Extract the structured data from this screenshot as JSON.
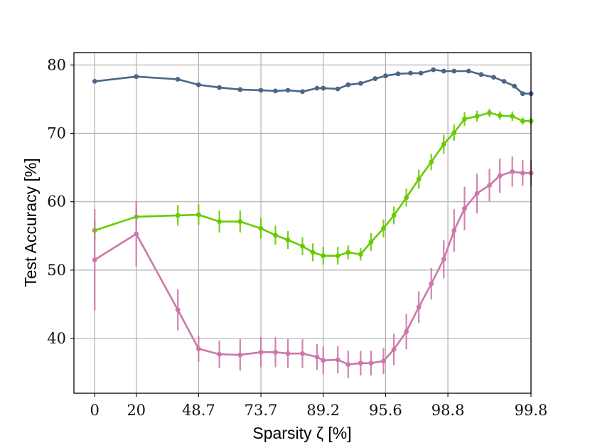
{
  "chart_data": {
    "type": "line",
    "xlabel": "Sparsity ζ [%]",
    "ylabel": "Test Accuracy [%]",
    "ylim": [
      32,
      81.8
    ],
    "yticks": [
      40,
      50,
      60,
      70,
      80
    ],
    "xtick_labels": [
      "0",
      "20",
      "48.7",
      "73.7",
      "89.2",
      "95.6",
      "98.8",
      "99.8"
    ],
    "xtick_index": [
      0,
      2,
      5,
      8,
      11,
      14,
      17,
      21
    ],
    "x_index_range": [
      -1.0,
      21.0
    ],
    "grid": true,
    "legend": "none",
    "x_index": [
      0,
      2,
      4,
      5,
      6,
      7,
      8,
      8.7,
      9.3,
      10,
      10.7,
      11,
      11.7,
      12.2,
      12.8,
      13.5,
      14,
      14.6,
      15.2,
      15.7,
      16.3,
      16.8,
      17.3,
      18,
      18.6,
      19.2,
      19.7,
      20.2,
      20.6,
      21
    ],
    "series": [
      {
        "color": "#4a6788",
        "x_index": [
          0,
          2,
          4,
          5,
          6,
          7,
          8,
          8.7,
          9.3,
          10,
          10.7,
          11,
          11.7,
          12.2,
          12.8,
          13.5,
          14,
          14.6,
          15.2,
          15.7,
          16.3,
          16.8,
          17.3,
          18,
          18.6,
          19.2,
          19.7,
          20.2,
          20.6,
          21
        ],
        "values": [
          77.6,
          78.3,
          77.9,
          77.1,
          76.7,
          76.4,
          76.3,
          76.2,
          76.3,
          76.1,
          76.6,
          76.6,
          76.5,
          77.1,
          77.3,
          78.0,
          78.4,
          78.7,
          78.8,
          78.8,
          79.3,
          79.1,
          79.1,
          79.1,
          78.6,
          78.2,
          77.6,
          76.9,
          75.8,
          75.8
        ],
        "errors": [
          0.3,
          0.3,
          0.3,
          0.3,
          0.3,
          0.3,
          0.3,
          0.3,
          0.3,
          0.3,
          0.3,
          0.3,
          0.3,
          0.3,
          0.3,
          0.3,
          0.3,
          0.3,
          0.3,
          0.3,
          0.3,
          0.3,
          0.3,
          0.3,
          0.3,
          0.3,
          0.3,
          0.3,
          0.3,
          0.3
        ]
      },
      {
        "color": "#66cc00",
        "x_index": [
          0,
          2,
          4,
          5,
          6,
          7,
          8,
          8.7,
          9.3,
          10,
          10.5,
          11,
          11.7,
          12.2,
          12.8,
          13.3,
          13.9,
          14.4,
          15,
          15.6,
          16.2,
          16.8,
          17.3,
          17.8,
          18.4,
          19,
          19.5,
          20.1,
          20.6,
          21
        ],
        "values": [
          55.8,
          57.8,
          58.0,
          58.1,
          57.1,
          57.1,
          56.1,
          55.1,
          54.4,
          53.5,
          52.6,
          52.1,
          52.1,
          52.6,
          52.3,
          54.1,
          56.1,
          58.0,
          60.6,
          63.3,
          65.8,
          68.4,
          70.1,
          72.1,
          72.5,
          73.0,
          72.6,
          72.5,
          71.8,
          71.8
        ],
        "errors": [
          1.3,
          1.4,
          1.5,
          1.5,
          1.6,
          1.6,
          1.5,
          1.4,
          1.3,
          1.3,
          1.3,
          1.3,
          1.3,
          1.0,
          0.9,
          1.3,
          1.3,
          1.3,
          1.3,
          1.4,
          1.2,
          1.4,
          1.2,
          1.0,
          0.8,
          0.6,
          0.6,
          0.7,
          0.5,
          0.5
        ]
      },
      {
        "color": "#cc77aa",
        "x_index": [
          0,
          2,
          4,
          5,
          6,
          7,
          8,
          8.7,
          9.3,
          10,
          10.7,
          11,
          11.7,
          12.2,
          12.8,
          13.3,
          13.9,
          14.4,
          15,
          15.6,
          16.2,
          16.8,
          17.3,
          17.8,
          18.4,
          19,
          19.5,
          20.1,
          20.6,
          21
        ],
        "values": [
          51.5,
          55.3,
          44.2,
          38.5,
          37.7,
          37.6,
          38.0,
          38.0,
          37.8,
          37.8,
          37.3,
          36.8,
          36.9,
          36.2,
          36.4,
          36.4,
          36.7,
          38.4,
          41.0,
          44.6,
          48.0,
          51.6,
          55.8,
          59.0,
          61.2,
          62.4,
          63.8,
          64.4,
          64.2,
          64.2
        ],
        "errors": [
          7.4,
          4.8,
          3.0,
          1.9,
          2.0,
          2.3,
          2.2,
          2.2,
          2.1,
          2.1,
          1.9,
          2.0,
          2.0,
          2.0,
          1.8,
          1.8,
          1.9,
          2.3,
          2.6,
          2.3,
          2.3,
          2.8,
          3.1,
          3.2,
          2.9,
          2.4,
          2.5,
          2.2,
          1.9,
          1.9
        ]
      }
    ]
  }
}
